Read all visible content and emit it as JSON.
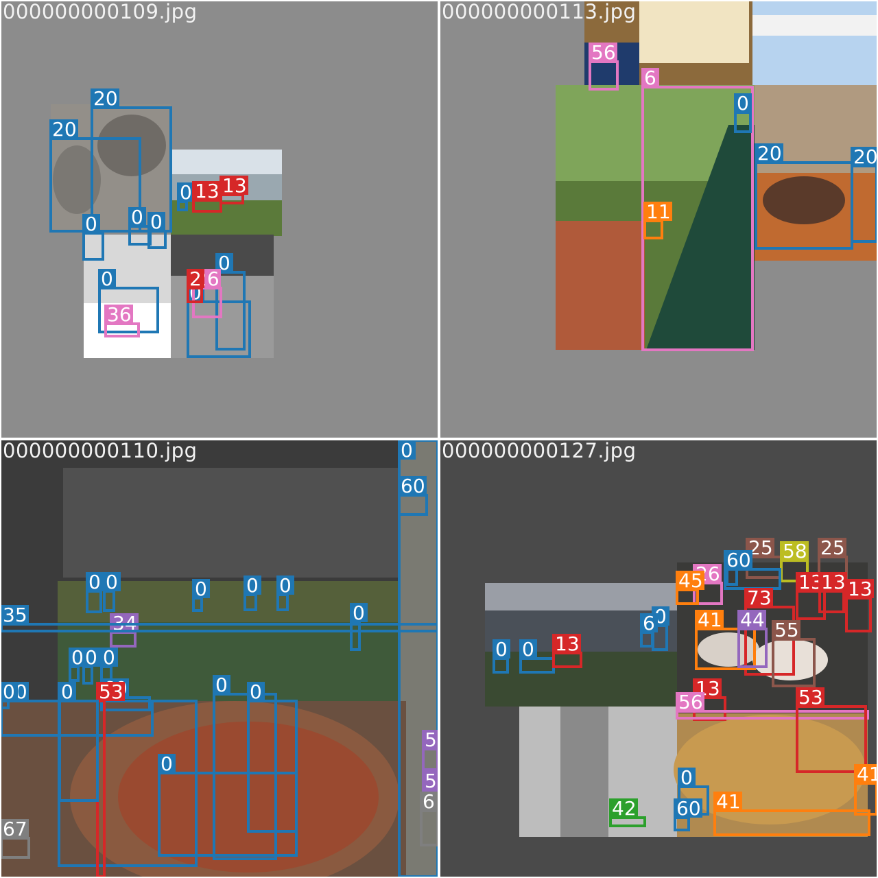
{
  "colors": {
    "person": "#1f77b4",
    "car": "#d62728",
    "train": "#e377c2",
    "stop_sign": "#ff7f0e",
    "elephant": "#1f77b4",
    "chair": "#1f77b4",
    "dining_table": "#1f77b4",
    "purple": "#9467bd",
    "olive": "#bcbd22",
    "green": "#2ca02c",
    "brown": "#8c564b",
    "gray": "#7f7f7f"
  },
  "tiles": [
    {
      "id": "tile-109",
      "filename": "000000000109.jpg",
      "background": "#8c8c8c",
      "boxes": [
        {
          "label": "20",
          "color": "#1f77b4"
        },
        {
          "label": "20",
          "color": "#1f77b4"
        },
        {
          "label": "0",
          "color": "#1f77b4"
        },
        {
          "label": "0",
          "color": "#1f77b4"
        },
        {
          "label": "0",
          "color": "#1f77b4"
        },
        {
          "label": "0",
          "color": "#1f77b4"
        },
        {
          "label": "0",
          "color": "#1f77b4"
        },
        {
          "label": "13",
          "color": "#d62728"
        },
        {
          "label": "13",
          "color": "#d62728"
        },
        {
          "label": "0",
          "color": "#1f77b4"
        },
        {
          "label": "0",
          "color": "#1f77b4"
        },
        {
          "label": "26",
          "color": "#e377c2"
        },
        {
          "label": "36",
          "color": "#e377c2"
        },
        {
          "label": "2",
          "color": "#d62728"
        }
      ]
    },
    {
      "id": "tile-113",
      "filename": "000000000113.jpg",
      "background": "#8c8c8c",
      "boxes": [
        {
          "label": "56",
          "color": "#e377c2"
        },
        {
          "label": "6",
          "color": "#e377c2"
        },
        {
          "label": "0",
          "color": "#1f77b4"
        },
        {
          "label": "20",
          "color": "#1f77b4"
        },
        {
          "label": "20",
          "color": "#1f77b4"
        },
        {
          "label": "11",
          "color": "#ff7f0e"
        }
      ]
    },
    {
      "id": "tile-110",
      "filename": "000000000110.jpg",
      "background": "#4a4a4a",
      "boxes": [
        {
          "label": "0",
          "color": "#1f77b4"
        },
        {
          "label": "60",
          "color": "#1f77b4"
        },
        {
          "label": "0",
          "color": "#1f77b4"
        },
        {
          "label": "0",
          "color": "#1f77b4"
        },
        {
          "label": "0",
          "color": "#1f77b4"
        },
        {
          "label": "0",
          "color": "#1f77b4"
        },
        {
          "label": "0",
          "color": "#1f77b4"
        },
        {
          "label": "0",
          "color": "#1f77b4"
        },
        {
          "label": "0",
          "color": "#1f77b4"
        },
        {
          "label": "0",
          "color": "#1f77b4"
        },
        {
          "label": "34",
          "color": "#9467bd"
        },
        {
          "label": "35",
          "color": "#1f77b4"
        },
        {
          "label": "60",
          "color": "#1f77b4"
        },
        {
          "label": "0",
          "color": "#1f77b4"
        },
        {
          "label": "0",
          "color": "#1f77b4"
        },
        {
          "label": "0",
          "color": "#1f77b4"
        },
        {
          "label": "60",
          "color": "#1f77b4"
        },
        {
          "label": "53",
          "color": "#d62728"
        },
        {
          "label": "0",
          "color": "#1f77b4"
        },
        {
          "label": "0",
          "color": "#1f77b4"
        },
        {
          "label": "0",
          "color": "#1f77b4"
        },
        {
          "label": "0",
          "color": "#1f77b4"
        },
        {
          "label": "5",
          "color": "#9467bd"
        },
        {
          "label": "5",
          "color": "#9467bd"
        },
        {
          "label": "6",
          "color": "#7f7f7f"
        },
        {
          "label": "67",
          "color": "#7f7f7f"
        }
      ]
    },
    {
      "id": "tile-127",
      "filename": "000000000127.jpg",
      "background": "#4a4a4a",
      "boxes": [
        {
          "label": "0",
          "color": "#1f77b4"
        },
        {
          "label": "25",
          "color": "#8c564b"
        },
        {
          "label": "58",
          "color": "#bcbd22"
        },
        {
          "label": "25",
          "color": "#8c564b"
        },
        {
          "label": "60",
          "color": "#1f77b4"
        },
        {
          "label": "26",
          "color": "#e377c2"
        },
        {
          "label": "13",
          "color": "#d62728"
        },
        {
          "label": "13",
          "color": "#d62728"
        },
        {
          "label": "13",
          "color": "#d62728"
        },
        {
          "label": "73",
          "color": "#d62728"
        },
        {
          "label": "41",
          "color": "#ff7f0e"
        },
        {
          "label": "44",
          "color": "#9467bd"
        },
        {
          "label": "55",
          "color": "#8c564b"
        },
        {
          "label": "0",
          "color": "#1f77b4"
        },
        {
          "label": "0",
          "color": "#1f77b4"
        },
        {
          "label": "0",
          "color": "#1f77b4"
        },
        {
          "label": "13",
          "color": "#d62728"
        },
        {
          "label": "13",
          "color": "#d62728"
        },
        {
          "label": "56",
          "color": "#e377c2"
        },
        {
          "label": "53",
          "color": "#d62728"
        },
        {
          "label": "0",
          "color": "#1f77b4"
        },
        {
          "label": "41",
          "color": "#ff7f0e"
        },
        {
          "label": "41",
          "color": "#ff7f0e"
        },
        {
          "label": "60",
          "color": "#1f77b4"
        },
        {
          "label": "42",
          "color": "#2ca02c"
        },
        {
          "label": "45",
          "color": "#ff7f0e"
        },
        {
          "label": "6",
          "color": "#1f77b4"
        }
      ]
    }
  ]
}
